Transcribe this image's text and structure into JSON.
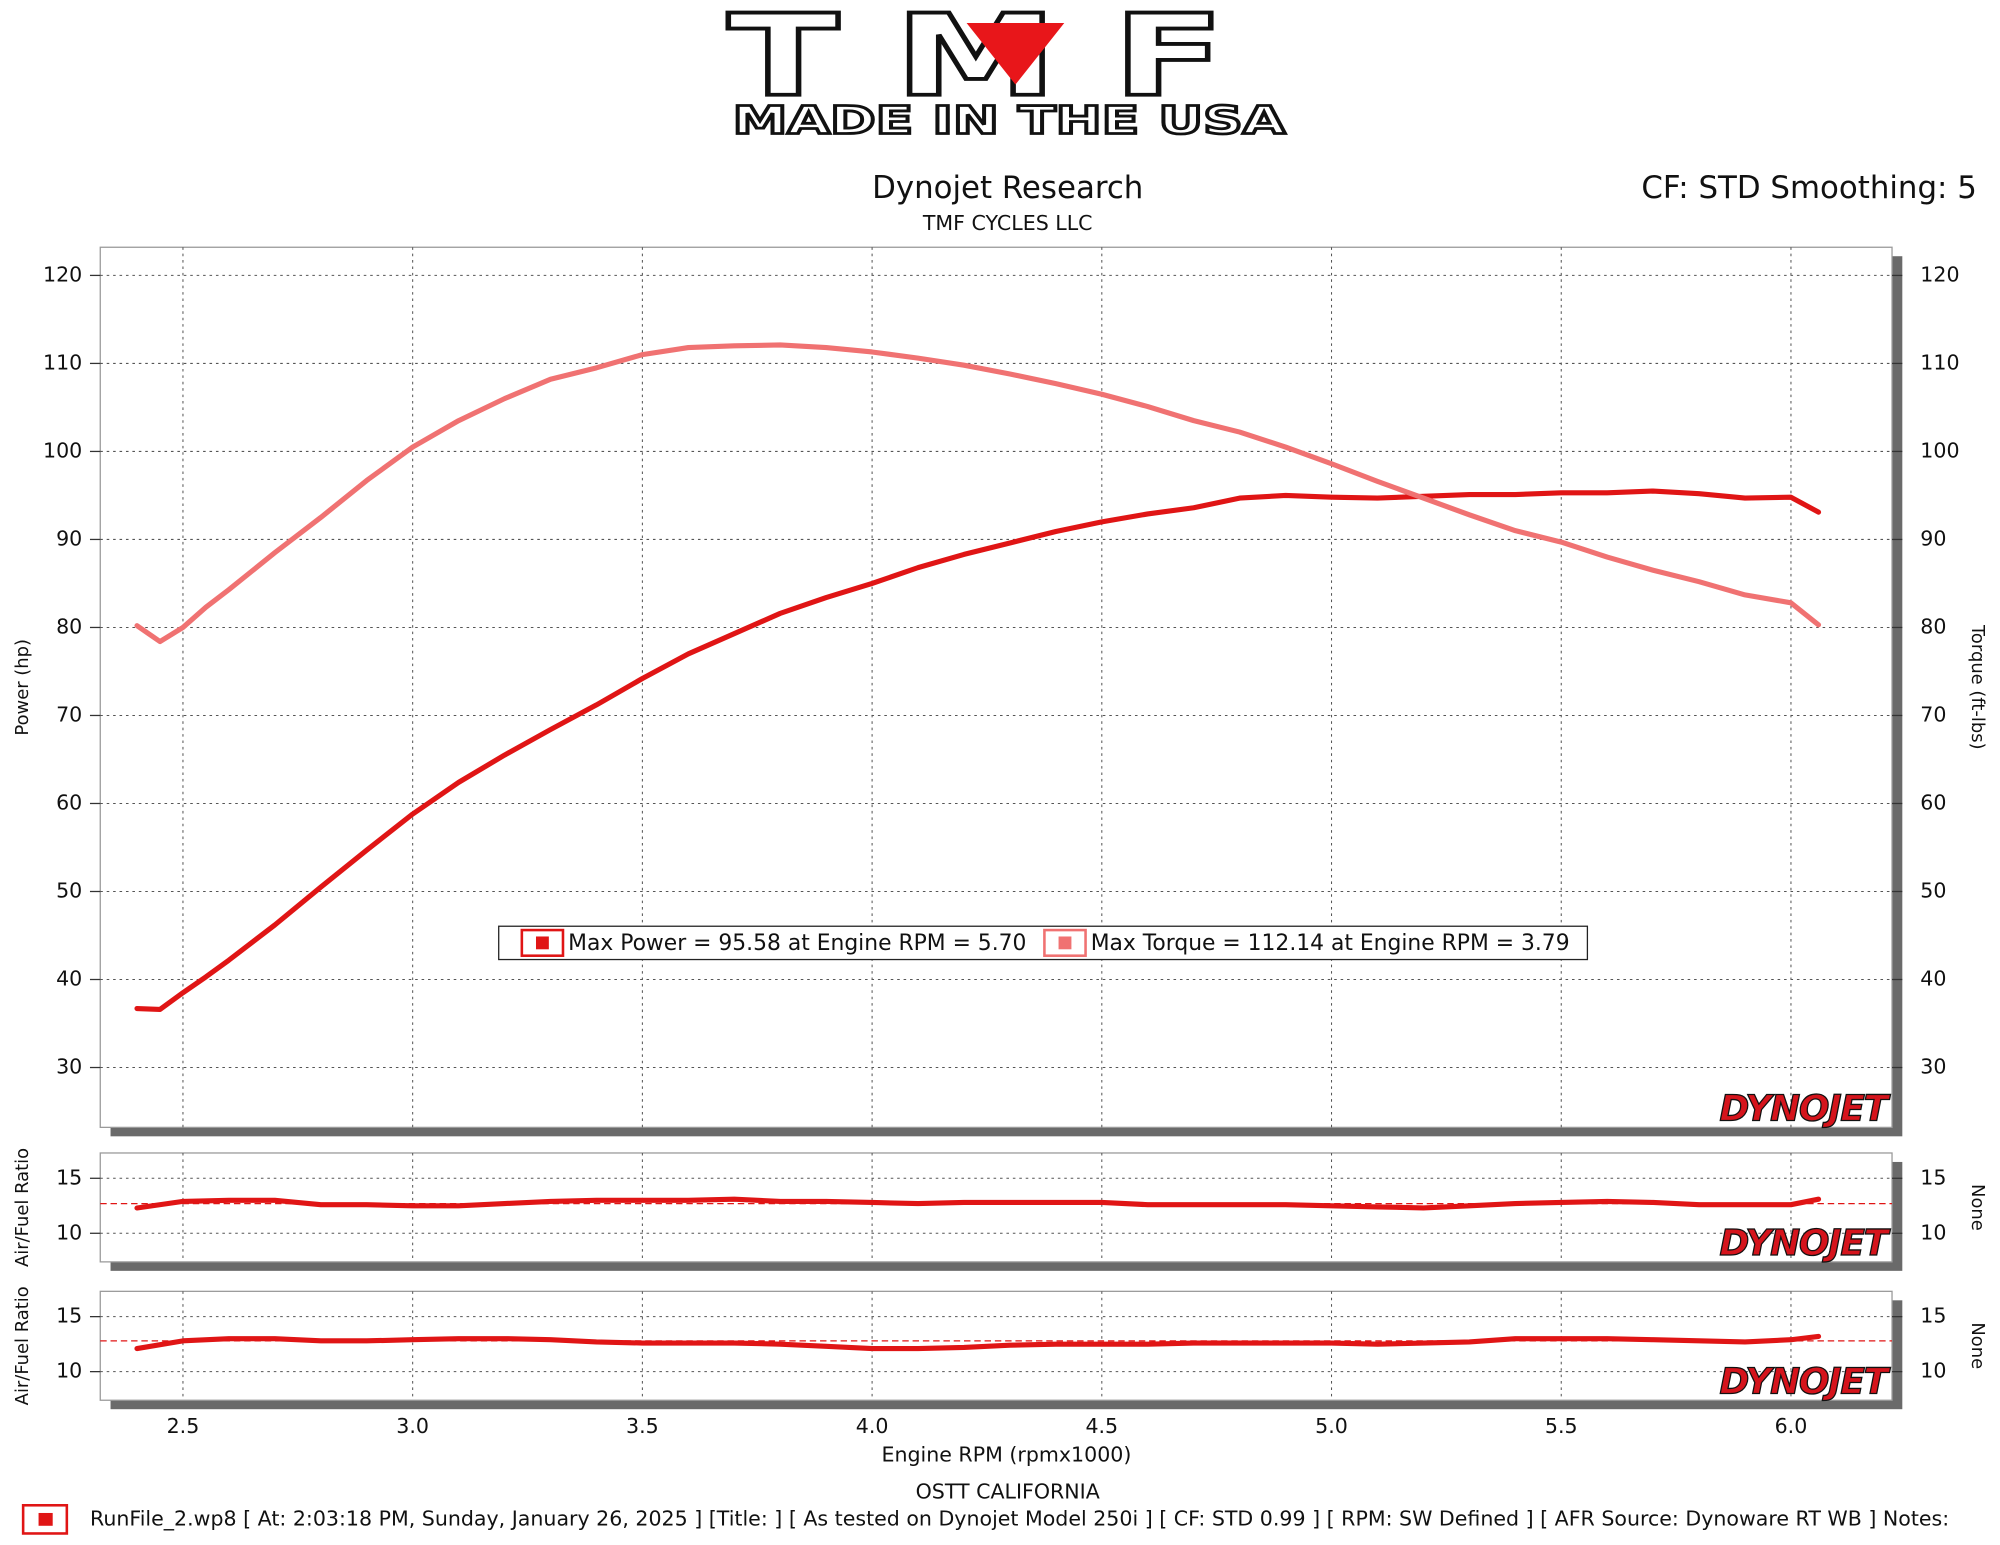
{
  "logo": {
    "brand": "TMF",
    "tagline": "MADE IN THE USA"
  },
  "title": "Dynojet Research",
  "subtitle": "TMF CYCLES LLC",
  "settings_text": "CF: STD Smoothing: 5",
  "footer": {
    "location": "OSTT CALIFORNIA",
    "run_info": "RunFile_2.wp8 [ At: 2:03:18 PM, Sunday, January 26, 2025 ] [Title: ]  [ As tested on Dynojet Model 250i ] [ CF: STD 0.99 ] [ RPM: SW Defined ] [ AFR Source: Dynoware RT WB ] Notes:"
  },
  "chart_data": [
    {
      "type": "line",
      "ylabel": "Power (hp)",
      "y2label": "Torque (ft-lbs)",
      "watermark": "DYNOJET",
      "xlim": [
        2.32,
        6.22
      ],
      "xticks": [
        2.5,
        {
          "value": 3,
          "label": "3.0"
        },
        3.5,
        {
          "value": 4,
          "label": "4.0"
        },
        4.5,
        {
          "value": 5,
          "label": "5.0"
        },
        5.5,
        {
          "value": 6,
          "label": "6.0"
        }
      ],
      "ylim": [
        23.2,
        123.2
      ],
      "yticks": [
        30,
        40,
        50,
        60,
        70,
        80,
        90,
        100,
        110,
        120
      ],
      "y2lim": [
        23.2,
        123.2
      ],
      "y2ticks": [
        30,
        40,
        50,
        60,
        70,
        80,
        90,
        100,
        110,
        120
      ],
      "grid": true,
      "legend": "center",
      "x": [
        2.4,
        2.45,
        2.5,
        2.55,
        2.6,
        2.7,
        2.8,
        2.9,
        3.0,
        3.1,
        3.2,
        3.3,
        3.4,
        3.5,
        3.6,
        3.7,
        3.8,
        3.9,
        4.0,
        4.1,
        4.2,
        4.3,
        4.4,
        4.5,
        4.6,
        4.7,
        4.8,
        4.9,
        5.0,
        5.1,
        5.2,
        5.3,
        5.4,
        5.5,
        5.6,
        5.7,
        5.8,
        5.9,
        6.0,
        6.06
      ],
      "series": [
        {
          "name": "Max Power = 95.58 at Engine RPM = 5.70",
          "color": "#e01515",
          "values": [
            36.7,
            36.6,
            38.5,
            40.3,
            42.2,
            46.2,
            50.5,
            54.7,
            58.8,
            62.4,
            65.5,
            68.4,
            71.2,
            74.2,
            77.0,
            79.3,
            81.6,
            83.4,
            85.0,
            86.8,
            88.3,
            89.6,
            90.9,
            92.0,
            92.9,
            93.6,
            94.7,
            95.0,
            94.8,
            94.7,
            94.9,
            95.1,
            95.1,
            95.3,
            95.3,
            95.5,
            95.2,
            94.7,
            94.8,
            93.1
          ]
        },
        {
          "name": "Max Torque = 112.14 at Engine RPM = 3.79",
          "color": "#f07272",
          "axis": "y2",
          "values": [
            80.2,
            78.4,
            80.0,
            82.3,
            84.3,
            88.5,
            92.5,
            96.7,
            100.5,
            103.5,
            106.0,
            108.2,
            109.5,
            111.0,
            111.8,
            112.0,
            112.1,
            111.8,
            111.3,
            110.6,
            109.8,
            108.8,
            107.7,
            106.5,
            105.1,
            103.5,
            102.2,
            100.5,
            98.6,
            96.6,
            94.7,
            92.8,
            91.0,
            89.7,
            88.0,
            86.5,
            85.2,
            83.7,
            82.8,
            80.3
          ]
        }
      ]
    },
    {
      "type": "line",
      "ylabel": "Air/Fuel Ratio",
      "y2label": "None",
      "watermark": "DYNOJET",
      "xlim": [
        2.32,
        6.22
      ],
      "xticks": [
        2.5,
        3,
        3.5,
        4,
        4.5,
        5,
        5.5,
        6
      ],
      "ylim": [
        7.4,
        17.3
      ],
      "yticks": [
        10,
        15
      ],
      "y2lim": [
        7.4,
        17.3
      ],
      "y2ticks": [
        10,
        15
      ],
      "grid": true,
      "reference": 12.7,
      "reference_color": "#e01515",
      "x": [
        2.4,
        2.5,
        2.6,
        2.7,
        2.8,
        2.9,
        3.0,
        3.1,
        3.2,
        3.3,
        3.4,
        3.5,
        3.6,
        3.7,
        3.8,
        3.9,
        4.0,
        4.1,
        4.2,
        4.3,
        4.4,
        4.5,
        4.6,
        4.7,
        4.8,
        4.9,
        5.0,
        5.1,
        5.2,
        5.3,
        5.4,
        5.5,
        5.6,
        5.7,
        5.8,
        5.9,
        6.0,
        6.06
      ],
      "series": [
        {
          "color": "#e01515",
          "values": [
            12.3,
            12.9,
            13.0,
            13.0,
            12.6,
            12.6,
            12.5,
            12.5,
            12.7,
            12.9,
            13.0,
            13.0,
            13.0,
            13.1,
            12.9,
            12.9,
            12.8,
            12.7,
            12.8,
            12.8,
            12.8,
            12.8,
            12.6,
            12.6,
            12.6,
            12.6,
            12.5,
            12.4,
            12.3,
            12.5,
            12.7,
            12.8,
            12.9,
            12.8,
            12.6,
            12.6,
            12.6,
            13.1
          ]
        }
      ]
    },
    {
      "type": "line",
      "ylabel": "Air/Fuel Ratio",
      "y2label": "None",
      "xlabel": "Engine RPM (rpmx1000)",
      "watermark": "DYNOJET",
      "xlim": [
        2.32,
        6.22
      ],
      "xticks": [
        2.5,
        {
          "value": 3,
          "label": "3.0"
        },
        3.5,
        {
          "value": 4,
          "label": "4.0"
        },
        4.5,
        {
          "value": 5,
          "label": "5.0"
        },
        5.5,
        {
          "value": 6,
          "label": "6.0"
        }
      ],
      "ylim": [
        7.4,
        17.3
      ],
      "yticks": [
        10,
        15
      ],
      "y2lim": [
        7.4,
        17.3
      ],
      "y2ticks": [
        10,
        15
      ],
      "grid": true,
      "reference": 12.8,
      "reference_color": "#e01515",
      "x": [
        2.4,
        2.5,
        2.6,
        2.7,
        2.8,
        2.9,
        3.0,
        3.1,
        3.2,
        3.3,
        3.4,
        3.5,
        3.6,
        3.7,
        3.8,
        3.9,
        4.0,
        4.1,
        4.2,
        4.3,
        4.4,
        4.5,
        4.6,
        4.7,
        4.8,
        4.9,
        5.0,
        5.1,
        5.2,
        5.3,
        5.4,
        5.5,
        5.6,
        5.7,
        5.8,
        5.9,
        6.0,
        6.06
      ],
      "series": [
        {
          "color": "#e01515",
          "values": [
            12.1,
            12.8,
            13.0,
            13.0,
            12.8,
            12.8,
            12.9,
            13.0,
            13.0,
            12.9,
            12.7,
            12.6,
            12.6,
            12.6,
            12.5,
            12.3,
            12.1,
            12.1,
            12.2,
            12.4,
            12.5,
            12.5,
            12.5,
            12.6,
            12.6,
            12.6,
            12.6,
            12.5,
            12.6,
            12.7,
            13.0,
            13.0,
            13.0,
            12.9,
            12.8,
            12.7,
            12.9,
            13.2
          ]
        }
      ]
    }
  ]
}
